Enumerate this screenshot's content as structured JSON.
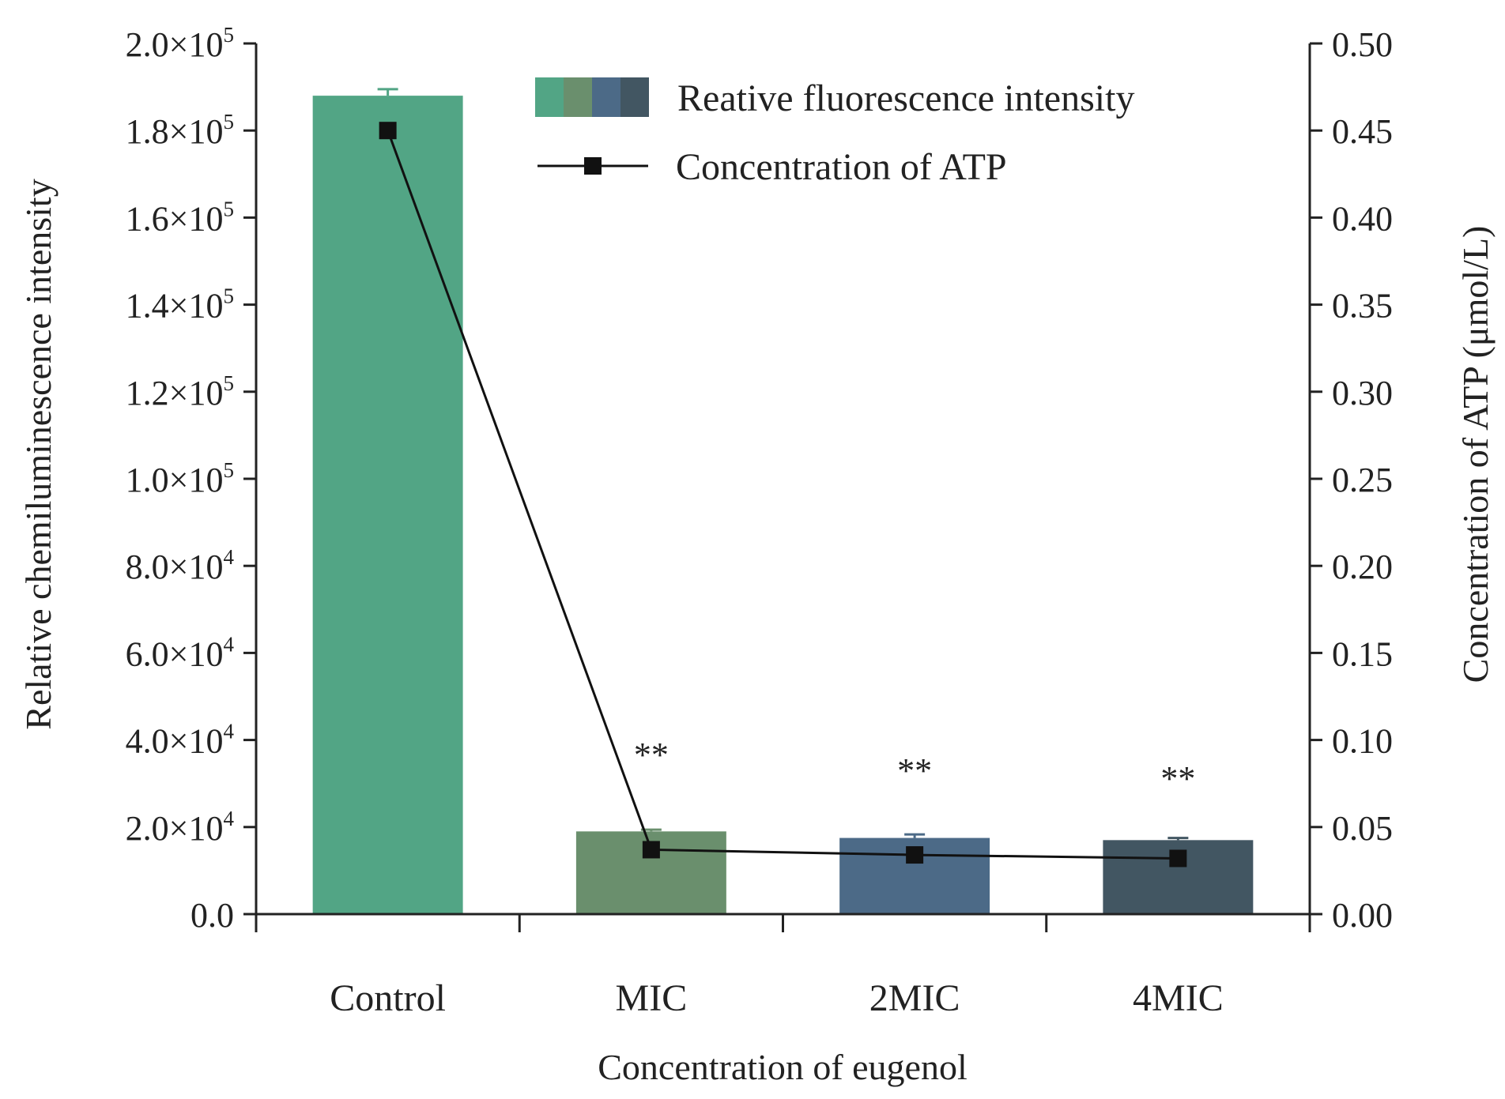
{
  "chart_data": {
    "type": "bar",
    "title": "",
    "xlabel": "Concentration of eugenol",
    "ylabel": "Relative chemiluminescence intensity",
    "y2label": "Concentration of ATP (μmol/L)",
    "categories": [
      "Control",
      "MIC",
      "2MIC",
      "4MIC"
    ],
    "ylim": [
      0,
      200000
    ],
    "y2lim": [
      0,
      0.5
    ],
    "yticks": [
      {
        "value": 0,
        "mant": "0.0",
        "exp": ""
      },
      {
        "value": 20000,
        "mant": "2.0×10",
        "exp": "4"
      },
      {
        "value": 40000,
        "mant": "4.0×10",
        "exp": "4"
      },
      {
        "value": 60000,
        "mant": "6.0×10",
        "exp": "4"
      },
      {
        "value": 80000,
        "mant": "8.0×10",
        "exp": "4"
      },
      {
        "value": 100000,
        "mant": "1.0×10",
        "exp": "5"
      },
      {
        "value": 120000,
        "mant": "1.2×10",
        "exp": "5"
      },
      {
        "value": 140000,
        "mant": "1.4×10",
        "exp": "5"
      },
      {
        "value": 160000,
        "mant": "1.6×10",
        "exp": "5"
      },
      {
        "value": 180000,
        "mant": "1.8×10",
        "exp": "5"
      },
      {
        "value": 200000,
        "mant": "2.0×10",
        "exp": "5"
      }
    ],
    "y2ticks": [
      "0.00",
      "0.05",
      "0.10",
      "0.15",
      "0.20",
      "0.25",
      "0.30",
      "0.35",
      "0.40",
      "0.45",
      "0.50"
    ],
    "grid": false,
    "legend_position": "top-right",
    "series": [
      {
        "name": "Reative fluorescence intensity",
        "kind": "bar",
        "axis": "left",
        "values": [
          188000,
          19000,
          17500,
          17000
        ],
        "errors": [
          1500,
          400,
          800,
          500
        ],
        "colors": [
          "#52a585",
          "#6a8f6d",
          "#4c6a87",
          "#425662"
        ]
      },
      {
        "name": "Concentration of ATP",
        "kind": "line",
        "axis": "right",
        "marker": "square",
        "color": "#111111",
        "values": [
          0.45,
          0.037,
          0.034,
          0.032
        ]
      }
    ],
    "annotations": [
      "",
      "**",
      "**",
      "**"
    ]
  }
}
